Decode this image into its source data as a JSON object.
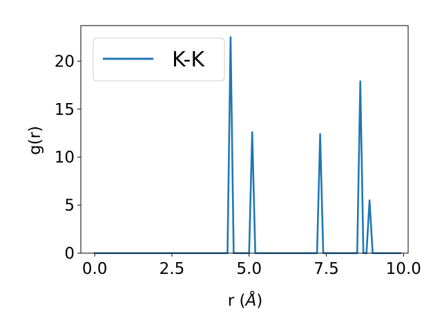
{
  "chart_data": {
    "type": "line",
    "xlabel_main": "r (",
    "xlabel_unit": "Å",
    "xlabel_close": ")",
    "ylabel": "g(r)",
    "xlim": [
      -0.45,
      10.15
    ],
    "ylim": [
      0,
      23.7
    ],
    "xticks": [
      0.0,
      2.5,
      5.0,
      7.5,
      10.0
    ],
    "xtick_labels": [
      "0.0",
      "2.5",
      "5.0",
      "7.5",
      "10.0"
    ],
    "yticks": [
      0,
      5,
      10,
      15,
      20
    ],
    "ytick_labels": [
      "0",
      "5",
      "10",
      "15",
      "20"
    ],
    "grid": false,
    "legend_position": "top-left",
    "series": [
      {
        "name": "K-K",
        "color": "#1f77b4",
        "x": [
          0.0,
          4.3,
          4.4,
          4.5,
          5.0,
          5.1,
          5.2,
          7.2,
          7.3,
          7.4,
          8.5,
          8.6,
          8.7,
          8.8,
          8.9,
          9.0,
          9.9
        ],
        "y": [
          0,
          0,
          22.5,
          0,
          0,
          12.6,
          0,
          0,
          12.4,
          0,
          0,
          17.9,
          0,
          0,
          5.5,
          0,
          0
        ]
      }
    ]
  }
}
